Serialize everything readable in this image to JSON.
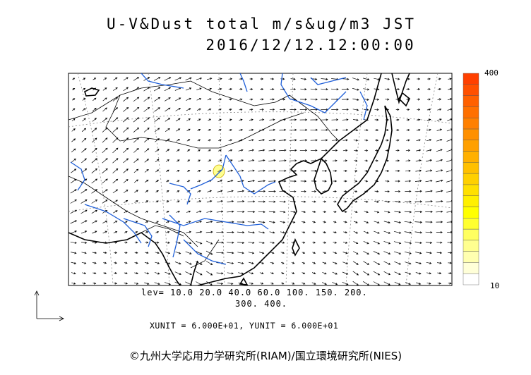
{
  "title_line1": "U-V&Dust total m/s&ug/m3 JST",
  "title_line2": "2016/12/12.12:00:00",
  "legend": {
    "levels_line1": "lev= 10.0 20.0 40.0 60.0 100. 150. 200.",
    "levels_line2": "300. 400.",
    "units": "XUNIT = 6.000E+01, YUNIT = 6.000E+01"
  },
  "colorbar": {
    "max_label": "400",
    "min_label": "10",
    "colors": [
      "#ffffff",
      "#ffffd8",
      "#ffffb0",
      "#ffff90",
      "#ffff60",
      "#ffff30",
      "#ffff00",
      "#fff000",
      "#ffe000",
      "#ffd000",
      "#ffc000",
      "#ffb000",
      "#ffa000",
      "#ff9000",
      "#ff8000",
      "#ff7000",
      "#ff6000",
      "#ff5000",
      "#ff4000"
    ]
  },
  "copyright": "©九州大学応用力学研究所(RIAM)/国立環境研究所(NIES)",
  "colors": {
    "coast": "#000000",
    "river": "#1f5fd8",
    "grid": "#888888",
    "vector": "#000000",
    "dust_patch": "#ffff90"
  }
}
